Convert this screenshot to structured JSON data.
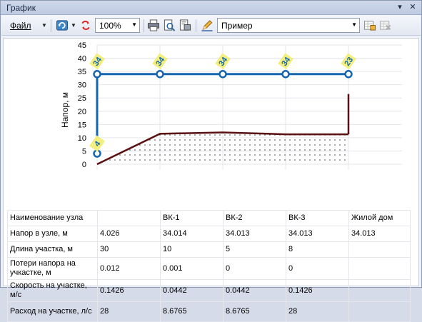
{
  "window": {
    "title": "График",
    "pin_glyph": "▾",
    "close_glyph": "✕"
  },
  "toolbar": {
    "file_label": "Файл",
    "zoom_value": "100%",
    "example_value": "Пример",
    "icons": [
      "refresh-icon",
      "reset-icon",
      "print-icon",
      "print-preview-icon",
      "page-setup-icon",
      "edit-icon",
      "table-add-icon",
      "table-delete-icon"
    ]
  },
  "chart_data": {
    "type": "line",
    "ylabel": "Напор, м",
    "ylim": [
      0,
      45
    ],
    "yticks": [
      "0",
      "5",
      "10",
      "15",
      "20",
      "25",
      "30",
      "35",
      "40",
      "45"
    ],
    "x": [
      0,
      1,
      2,
      3,
      4
    ],
    "series": [
      {
        "role": "head",
        "values": [
          4.026,
          34.014,
          34.013,
          34.013,
          34.013
        ],
        "color": "#1565b0"
      },
      {
        "role": "terrain",
        "values": [
          0,
          11.5,
          12,
          11.3,
          11.3
        ],
        "color": "#5a1010"
      }
    ],
    "end_riser_top": 26.5,
    "node_badges": [
      "4",
      "34",
      "34",
      "34",
      "34",
      "23"
    ],
    "badge_color": "#f3ef7e"
  },
  "table": {
    "rows": [
      {
        "label": "Наименование узла",
        "cells": [
          "",
          "ВК-1",
          "ВК-2",
          "ВК-3",
          "Жилой дом"
        ]
      },
      {
        "label": "Напор в узле, м",
        "cells": [
          "4.026",
          "34.014",
          "34.013",
          "34.013",
          "34.013"
        ]
      },
      {
        "label": "Длина участка, м",
        "cells": [
          "30",
          "10",
          "5",
          "8",
          ""
        ]
      },
      {
        "label": "Потери напора на учкастке, м",
        "cells": [
          "0.012",
          "0.001",
          "0",
          "0",
          ""
        ]
      },
      {
        "label": "Скорость на участке, м/с",
        "cells": [
          "0.1426",
          "0.0442",
          "0.0442",
          "0.1426",
          ""
        ]
      },
      {
        "label": "Расход на участке, л/с",
        "cells": [
          "28",
          "8.6765",
          "8.6765",
          "28",
          ""
        ]
      }
    ]
  }
}
